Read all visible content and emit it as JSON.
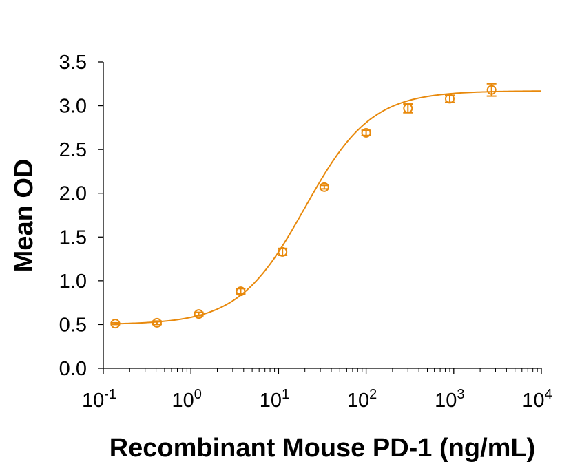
{
  "colors": {
    "series": "#E8890C",
    "axis": "#000000"
  },
  "chart_data": {
    "type": "scatter",
    "title": "",
    "xlabel": "Recombinant Mouse PD-1 (ng/mL)",
    "ylabel": "Mean OD",
    "x_scale": "log",
    "xlim": [
      0.1,
      10000
    ],
    "ylim": [
      0,
      3.5
    ],
    "grid": false,
    "legend": "none",
    "x_ticks": [
      {
        "base": "10",
        "exp": "-1"
      },
      {
        "base": "10",
        "exp": "0"
      },
      {
        "base": "10",
        "exp": "1"
      },
      {
        "base": "10",
        "exp": "2"
      },
      {
        "base": "10",
        "exp": "3"
      },
      {
        "base": "10",
        "exp": "4"
      }
    ],
    "y_ticks": [
      "0.0",
      "0.5",
      "1.0",
      "1.5",
      "2.0",
      "2.5",
      "3.0",
      "3.5"
    ],
    "series": [
      {
        "marker": "open-circle",
        "x": [
          0.137,
          0.41,
          1.23,
          3.7,
          11.1,
          33.3,
          100,
          300,
          900,
          2700
        ],
        "y": [
          0.51,
          0.52,
          0.62,
          0.88,
          1.33,
          2.07,
          2.69,
          2.97,
          3.08,
          3.18
        ],
        "error": [
          0.01,
          0.02,
          0.02,
          0.03,
          0.04,
          0.02,
          0.03,
          0.05,
          0.04,
          0.07
        ]
      }
    ],
    "fit_curve": {
      "model": "4PL",
      "bottom": 0.5,
      "top": 3.17,
      "ec50": 20,
      "hill": 1.15
    }
  }
}
